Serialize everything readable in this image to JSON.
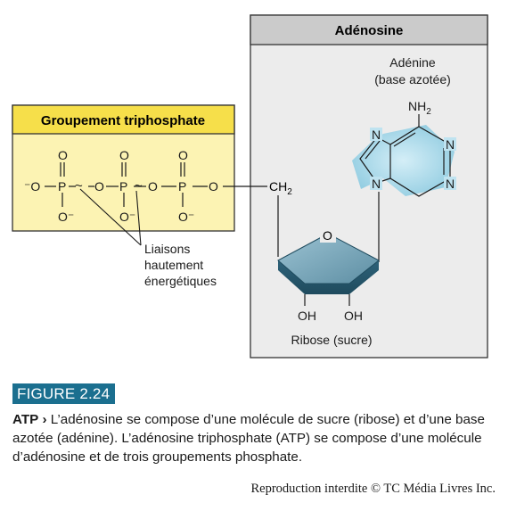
{
  "adenosine_box": {
    "title": "Adénosine"
  },
  "triphosphate_box": {
    "title": "Groupement triphosphate"
  },
  "adenine": {
    "name": "Adénine",
    "subtitle": "(base azotée)",
    "nh2": "NH",
    "nh2_sub": "2",
    "n_labels": [
      "N",
      "N",
      "N",
      "N"
    ]
  },
  "phosphate": {
    "minus_o": "⁻O",
    "p": "P",
    "o": "O",
    "o_minus": "O⁻",
    "tilde": "~"
  },
  "ch2": {
    "ch": "CH",
    "sub": "2"
  },
  "ribose": {
    "ring_o": "O",
    "oh_left": "OH",
    "oh_right": "OH",
    "label": "Ribose (sucre)"
  },
  "bonds_label": [
    "Liaisons",
    "hautement",
    "énergétiques"
  ],
  "figure": {
    "label": "FIGURE 2.24",
    "caption_title": "ATP",
    "caption_arrow": "›",
    "caption_text": "L’adénosine se compose d’une molécule de sucre (ribose) et d’une base azotée (adénine). L’adénosine triphosphate (ATP) se compose d’une molécule d’adénosine et de trois groupements phosphate."
  },
  "copyright": "Reproduction interdite © TC Média Livres Inc.",
  "colors": {
    "triphosphate_fill": "#fcf3b3",
    "triphosphate_header": "#f6df4a",
    "adenosine_fill": "#ececec",
    "adenosine_header": "#cbcbcb",
    "adenine_fill": "#9fd4e6",
    "ribose_fill": "#5a8fa6",
    "figure_label_bg": "#1b6f8f"
  }
}
